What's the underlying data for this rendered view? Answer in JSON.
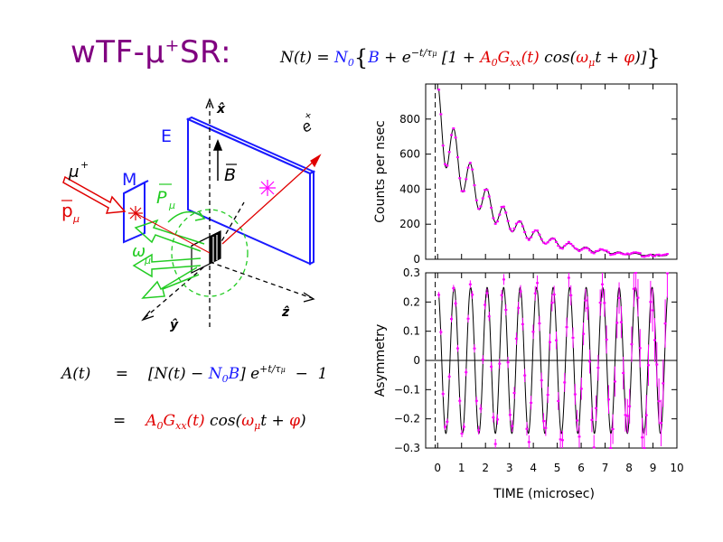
{
  "title": {
    "main": "wTF-μ",
    "sup": "+",
    "tail": "SR:"
  },
  "equation_top": {
    "lhs": "N(t) = ",
    "n0": "N",
    "n0_sub": "0",
    "brace_open": "{",
    "B": "B",
    "plus_e": " + e",
    "exp": "−t/τ",
    "exp_sub": "μ",
    "bracket": " [1 + ",
    "A0Gxx": "A",
    "a_sub": "0",
    "G": "G",
    "g_sub": "xx",
    "t_paren": "(t)",
    "cos": " cos(",
    "omega": "ω",
    "omega_sub": "μ",
    "omega_t": "t + ",
    "phi": "φ",
    "close": ")]",
    "brace_close": "}"
  },
  "equation_bottom": {
    "line1": {
      "lhs": "A(t)",
      "eq": "=",
      "part1": "[N(t) − ",
      "n0": "N",
      "n0_sub": "0",
      "B": "B",
      "part2": "] e",
      "exp": "+t/τ",
      "exp_sub": "μ",
      "tail": "  −  1"
    },
    "line2": {
      "eq": "=",
      "A": "A",
      "a_sub": "0",
      "G": "G",
      "g_sub": "xx",
      "t_paren": "(t)",
      "cos": " cos(",
      "omega": "ω",
      "omega_sub": "μ",
      "omega_t": "t + ",
      "phi": "φ",
      "close": ")"
    }
  },
  "diagram": {
    "label_E": "E",
    "label_M": "M",
    "label_x": "x̂",
    "label_y": "ŷ",
    "label_z": "ẑ",
    "label_B": "B",
    "label_P": "P",
    "label_P_sub": "μ",
    "label_mu": "μ",
    "label_mu_sup": "+",
    "label_p": "p",
    "label_p_sub": "μ",
    "label_omega": "ω",
    "label_omega_sub": "μ",
    "label_e": "e",
    "label_e_sup": "+",
    "colors": {
      "blue": "#1a1aff",
      "red": "#e00000",
      "green": "#22cc22",
      "black": "#000000"
    }
  },
  "chart_data": [
    {
      "type": "line",
      "ylabel": "Counts per nsec",
      "ylim": [
        0,
        1000
      ],
      "xlim": [
        -0.5,
        10
      ],
      "yticks": [
        0,
        200,
        400,
        600,
        800
      ],
      "series": [
        {
          "color": "#000000"
        },
        {
          "color": "#ff00ff"
        }
      ],
      "model": {
        "N0": 800,
        "B": 10,
        "tau_us": 2.2,
        "A0": 0.25,
        "freq_MHz": 1.45,
        "phase": 0,
        "x_start": 0.05,
        "x_end": 9.6
      },
      "marker_x": -0.1
    },
    {
      "type": "line",
      "ylabel": "Asymmetry",
      "xlabel": "TIME (microsec)",
      "ylim": [
        -0.3,
        0.3
      ],
      "xlim": [
        -0.5,
        10
      ],
      "xticks": [
        0,
        1,
        2,
        3,
        4,
        5,
        6,
        7,
        8,
        9,
        10
      ],
      "yticks": [
        -0.3,
        -0.2,
        -0.1,
        0,
        0.1,
        0.2,
        0.3
      ],
      "ytick_labels": [
        "−0.3",
        "−0.2",
        "−0.1",
        "0",
        "0.1",
        "0.2",
        "0.3"
      ],
      "series": [
        {
          "color": "#000000"
        },
        {
          "color": "#ff00ff"
        }
      ],
      "model": {
        "A0": 0.25,
        "freq_MHz": 1.45,
        "phase": 0,
        "x_start": 0.05,
        "x_end": 9.6
      },
      "marker_x": -0.1
    }
  ]
}
